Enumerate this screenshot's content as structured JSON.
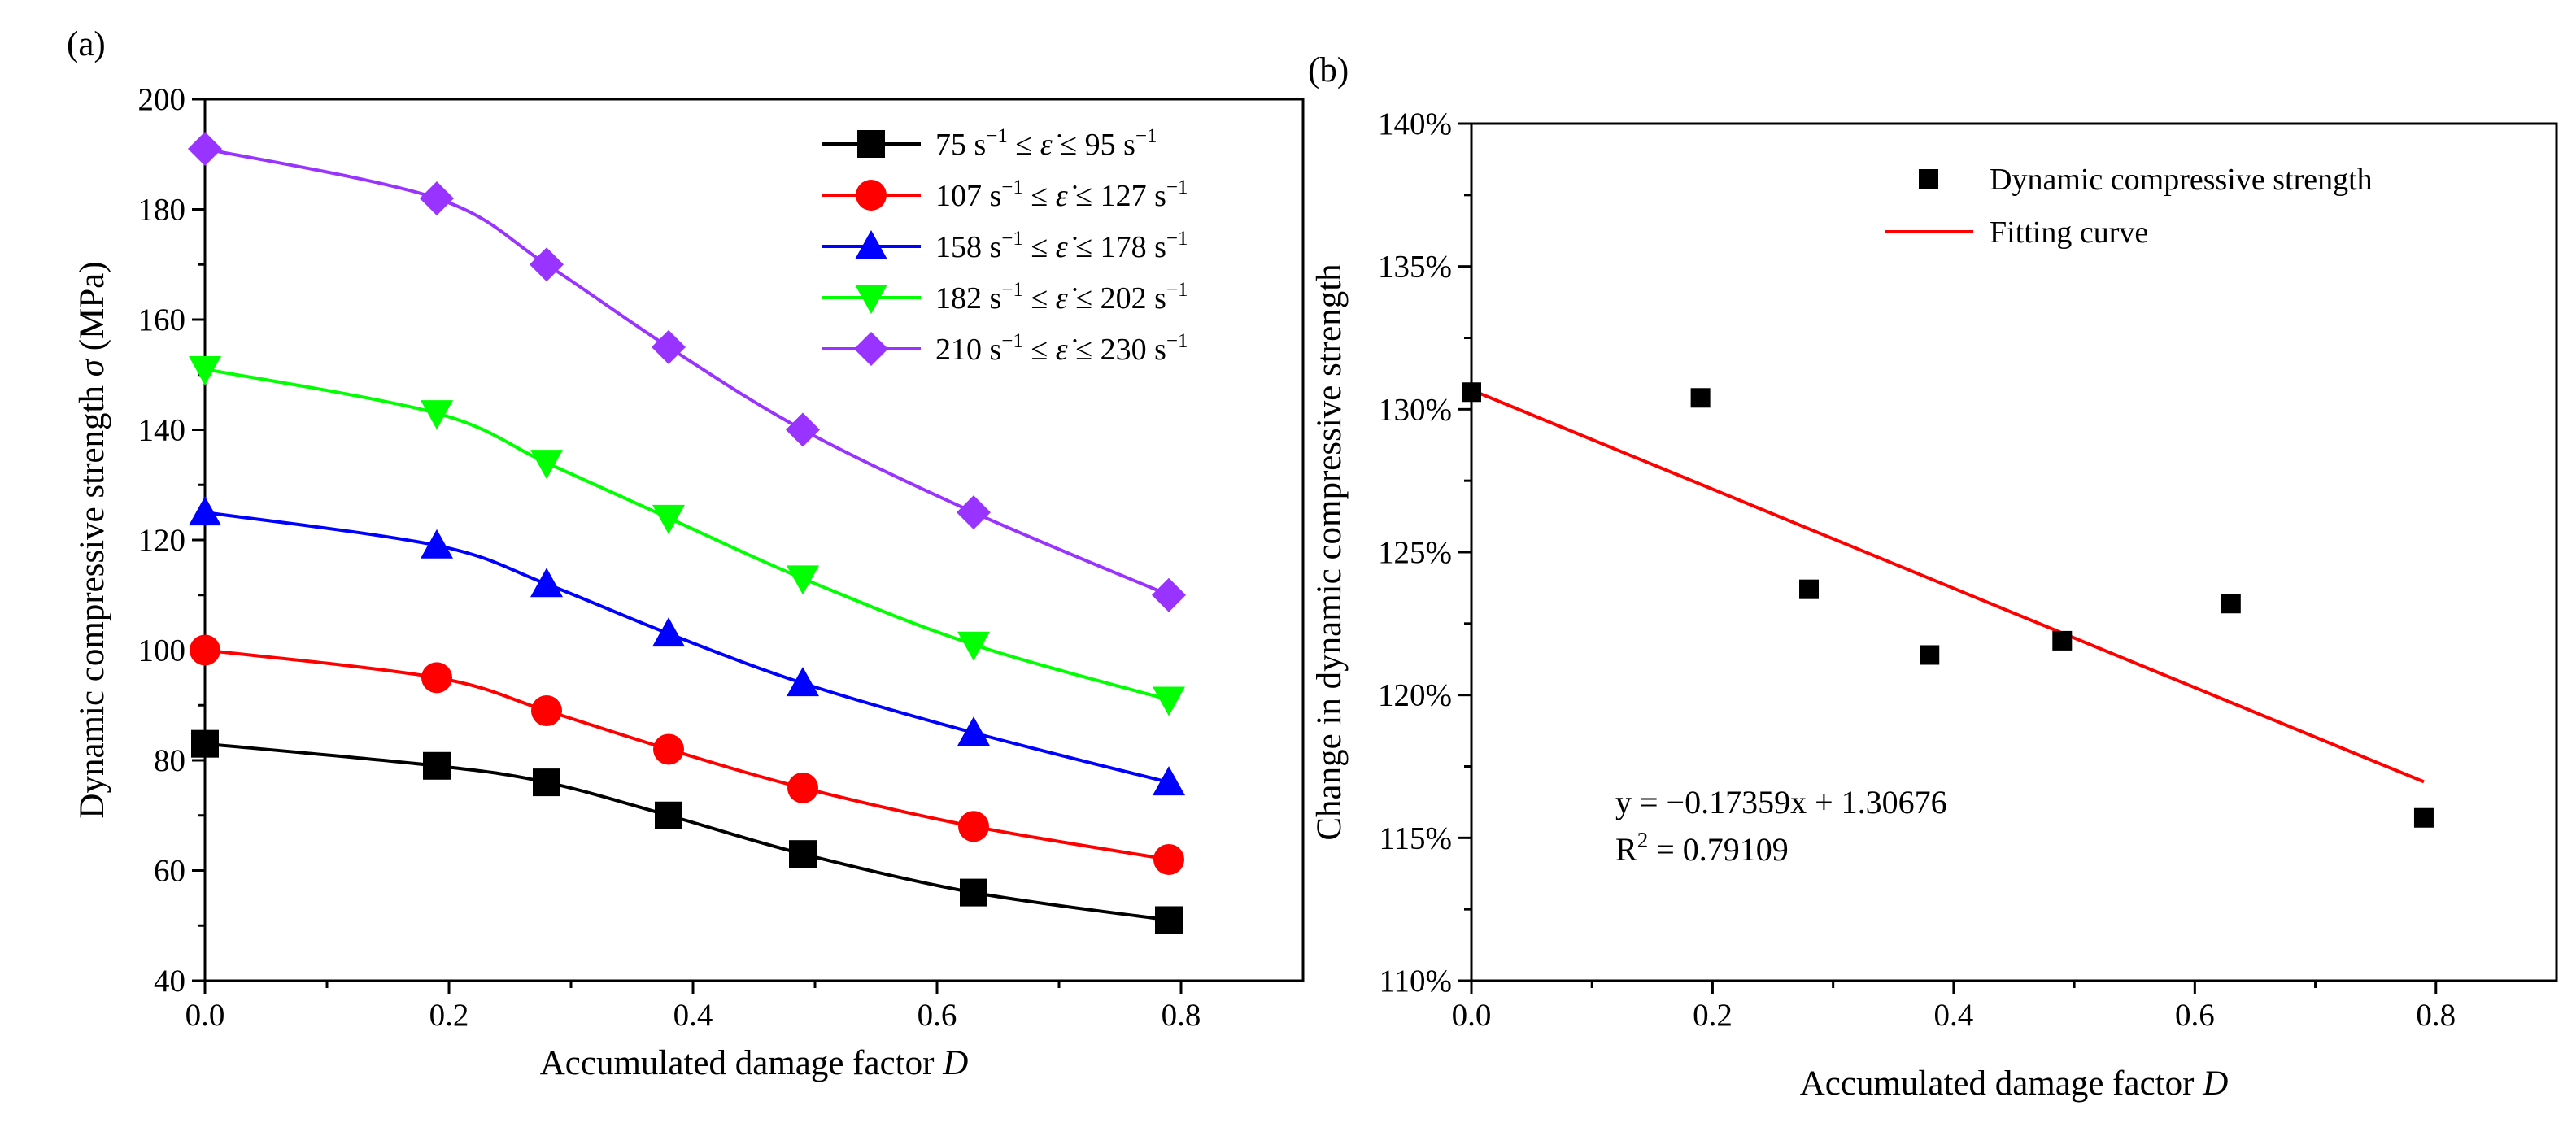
{
  "chart_data": [
    {
      "type": "line",
      "panel_label": "(a)",
      "xlabel": "Accumulated damage factor ",
      "xlabel_italic": "D",
      "ylabel": "Dynamic compressive strength ",
      "ylabel_symbol": "σ",
      "ylabel_unit": " (MPa)",
      "xlim": [
        0.0,
        0.9
      ],
      "ylim": [
        40,
        200
      ],
      "xticks": [
        0.0,
        0.2,
        0.4,
        0.6,
        0.8
      ],
      "xtick_labels": [
        "0.0",
        "0.2",
        "0.4",
        "0.6",
        "0.8"
      ],
      "yticks": [
        40,
        60,
        80,
        100,
        120,
        140,
        160,
        180,
        200
      ],
      "ytick_labels": [
        "40",
        "60",
        "80",
        "100",
        "120",
        "140",
        "160",
        "180",
        "200"
      ],
      "legend_position": "top-right",
      "x": [
        0.0,
        0.19,
        0.28,
        0.38,
        0.49,
        0.63,
        0.79
      ],
      "series": [
        {
          "name": "75 s⁻¹ ≤ ε̇ ≤ 95 s⁻¹",
          "low": "75",
          "high": "95",
          "marker": "square",
          "color": "#000000",
          "values": [
            83,
            79,
            76,
            70,
            63,
            56,
            51
          ]
        },
        {
          "name": "107 s⁻¹ ≤ ε̇ ≤ 127 s⁻¹",
          "low": "107",
          "high": "127",
          "marker": "circle",
          "color": "#ff0000",
          "values": [
            100,
            95,
            89,
            82,
            75,
            68,
            62
          ]
        },
        {
          "name": "158 s⁻¹ ≤ ε̇ ≤ 178 s⁻¹",
          "low": "158",
          "high": "178",
          "marker": "triangle-up",
          "color": "#0000ff",
          "values": [
            125,
            119,
            112,
            103,
            94,
            85,
            76
          ]
        },
        {
          "name": "182 s⁻¹ ≤ ε̇ ≤ 202 s⁻¹",
          "low": "182",
          "high": "202",
          "marker": "triangle-down",
          "color": "#00ff00",
          "values": [
            151,
            143,
            134,
            124,
            113,
            101,
            91
          ]
        },
        {
          "name": "210 s⁻¹ ≤ ε̇ ≤ 230 s⁻¹",
          "low": "210",
          "high": "230",
          "marker": "diamond",
          "color": "#9933ff",
          "values": [
            191,
            182,
            170,
            155,
            140,
            125,
            110
          ]
        }
      ]
    },
    {
      "type": "scatter",
      "panel_label": "(b)",
      "xlabel": "Accumulated damage factor ",
      "xlabel_italic": "D",
      "ylabel": "Change in dynamic compressive strength",
      "xlim": [
        0.0,
        0.9
      ],
      "ylim": [
        110,
        140
      ],
      "xticks": [
        0.0,
        0.2,
        0.4,
        0.6,
        0.8
      ],
      "xtick_labels": [
        "0.0",
        "0.2",
        "0.4",
        "0.6",
        "0.8"
      ],
      "yticks": [
        110,
        115,
        120,
        125,
        130,
        135,
        140
      ],
      "ytick_labels": [
        "110%",
        "115%",
        "120%",
        "125%",
        "130%",
        "135%",
        "140%"
      ],
      "legend_position": "top-right",
      "series": [
        {
          "name": "Dynamic compressive strength",
          "marker": "square",
          "color": "#000000",
          "x": [
            0.0,
            0.19,
            0.28,
            0.38,
            0.49,
            0.63,
            0.79
          ],
          "values": [
            130.6,
            130.4,
            123.7,
            121.4,
            121.9,
            123.2,
            115.7
          ]
        }
      ],
      "fit": {
        "name": "Fitting curve",
        "color": "#ff0000",
        "slope": -0.17359,
        "intercept": 1.30676,
        "x_range": [
          0.0,
          0.79
        ]
      },
      "annotation": {
        "equation": "y = −0.17359x + 1.30676",
        "r2_prefix": "R",
        "r2_suffix": " = 0.79109"
      }
    }
  ]
}
